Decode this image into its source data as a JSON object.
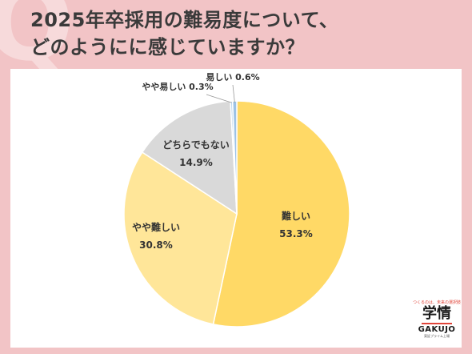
{
  "header": {
    "title_line1": "2025年卒採用の難易度について、",
    "title_line2": "どのようにに感じていますか？"
  },
  "logo": {
    "tagline": "つくるのは、未来の選択肢",
    "mark": "学情",
    "brand": "GAKUJO",
    "sub": "東証プライム上場"
  },
  "chart_data": {
    "type": "pie",
    "start_angle_deg": 0,
    "direction": "clockwise",
    "slices": [
      {
        "label": "難しい",
        "value": 53.3,
        "value_label": "53.3%",
        "color": "#ffd966"
      },
      {
        "label": "やや難しい",
        "value": 30.8,
        "value_label": "30.8%",
        "color": "#ffe699"
      },
      {
        "label": "どちらでもない",
        "value": 14.9,
        "value_label": "14.9%",
        "color": "#d9d9d9"
      },
      {
        "label": "やや易しい",
        "value": 0.3,
        "value_label": "0.3%",
        "color": "#bdd7ee"
      },
      {
        "label": "易しい",
        "value": 0.6,
        "value_label": "0.6%",
        "color": "#9dc3e6"
      }
    ]
  }
}
